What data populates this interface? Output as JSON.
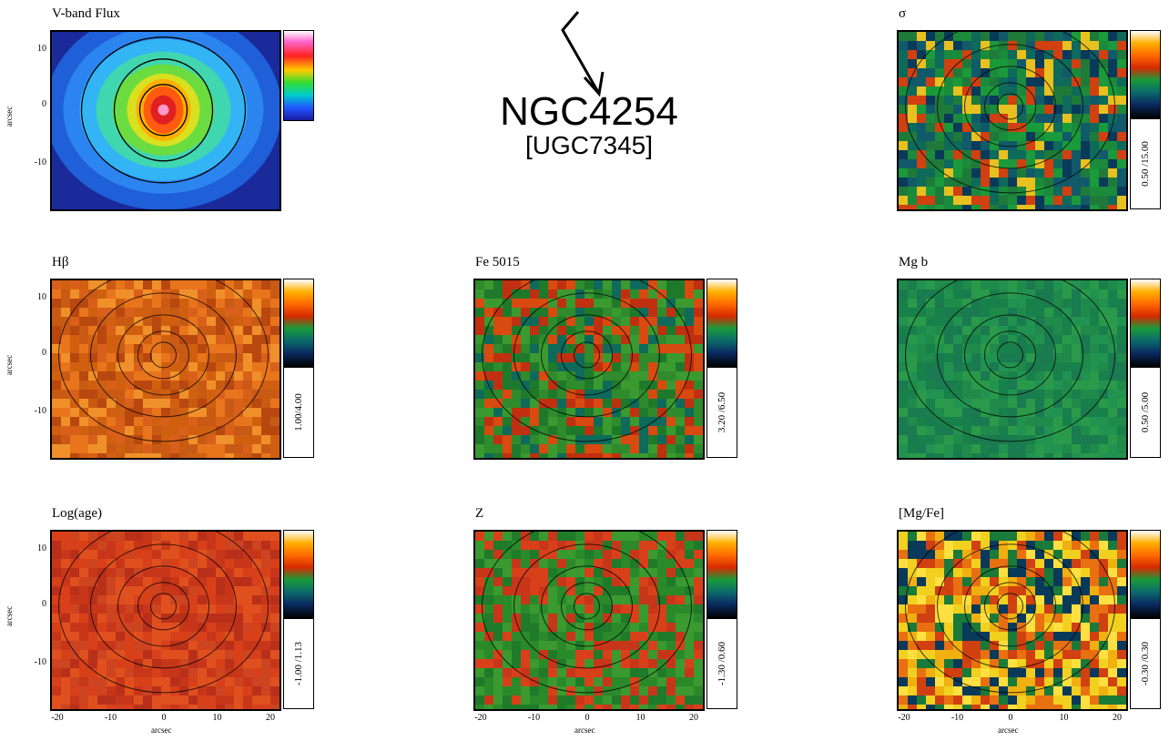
{
  "galaxy": {
    "name": "NGC4254",
    "alt_name": "[UGC7345]"
  },
  "chart_data": [
    {
      "type": "heatmap",
      "title": "V-band Flux",
      "colormap": "rainbow",
      "range_label": "",
      "yticks": [
        "10",
        "0",
        "-10"
      ],
      "ylabel": "arcsec"
    },
    {
      "type": "heatmap",
      "title": "σ",
      "colormap": "sauron",
      "range_label": "0.50 /15.00"
    },
    {
      "type": "heatmap",
      "title": "Hβ",
      "colormap": "sauron",
      "range_label": "1.00/4.00",
      "yticks": [
        "10",
        "0",
        "-10"
      ],
      "ylabel": "arcsec"
    },
    {
      "type": "heatmap",
      "title": "Fe 5015",
      "colormap": "sauron",
      "range_label": "3.20 /6.50"
    },
    {
      "type": "heatmap",
      "title": "Mg b",
      "colormap": "sauron",
      "range_label": "0.50 /5.00"
    },
    {
      "type": "heatmap",
      "title": "Log(age)",
      "colormap": "sauron",
      "range_label": "-1.00 /1.13",
      "yticks": [
        "10",
        "0",
        "-10"
      ],
      "ylabel": "arcsec",
      "xticks": [
        "-20",
        "-10",
        "0",
        "10",
        "20"
      ],
      "xlabel": "arcsec"
    },
    {
      "type": "heatmap",
      "title": "Z",
      "colormap": "sauron",
      "range_label": "-1.30 /0.60",
      "xticks": [
        "-20",
        "-10",
        "0",
        "10",
        "20"
      ],
      "xlabel": "arcsec"
    },
    {
      "type": "heatmap",
      "title": "[Mg/Fe]",
      "colormap": "sauron",
      "range_label": "-0.30 /0.30",
      "xticks": [
        "-20",
        "-10",
        "0",
        "10",
        "20"
      ],
      "xlabel": "arcsec"
    }
  ]
}
